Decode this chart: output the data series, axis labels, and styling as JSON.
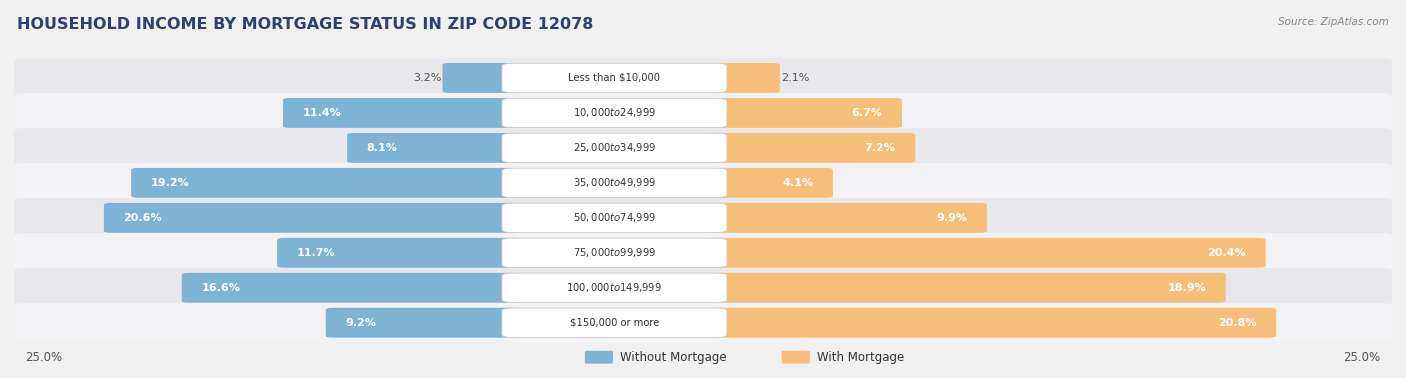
{
  "title": "HOUSEHOLD INCOME BY MORTGAGE STATUS IN ZIP CODE 12078",
  "source": "Source: ZipAtlas.com",
  "categories": [
    "Less than $10,000",
    "$10,000 to $24,999",
    "$25,000 to $34,999",
    "$35,000 to $49,999",
    "$50,000 to $74,999",
    "$75,000 to $99,999",
    "$100,000 to $149,999",
    "$150,000 or more"
  ],
  "without_mortgage": [
    3.2,
    11.4,
    8.1,
    19.2,
    20.6,
    11.7,
    16.6,
    9.2
  ],
  "with_mortgage": [
    2.1,
    6.7,
    7.2,
    4.1,
    9.9,
    20.4,
    18.9,
    20.8
  ],
  "color_without": "#7fb3d3",
  "color_with": "#f5bf7a",
  "xlim": 25.0,
  "background_color": "#f0f0f0",
  "row_bg_even": "#e8e8ec",
  "row_bg_odd": "#f2f2f5",
  "title_color": "#2e4070",
  "source_color": "#888888",
  "legend_labels": [
    "Without Mortgage",
    "With Mortgage"
  ],
  "axis_label": "25.0%"
}
